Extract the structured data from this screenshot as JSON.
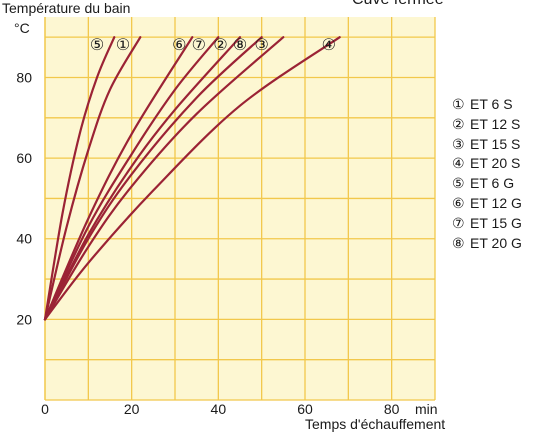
{
  "chart_data": {
    "type": "line",
    "ylabel": "Température du bain",
    "yunit": "°C",
    "xlabel": "Temps d'échauffement",
    "xunit": "min",
    "top_text": "Cuve fermée",
    "xlim": [
      0,
      90
    ],
    "ylim": [
      0,
      95
    ],
    "xticks": [
      0,
      20,
      40,
      60,
      80
    ],
    "yticks": [
      20,
      40,
      60,
      80
    ],
    "grid": true,
    "background": "#fdf7d2",
    "grid_color": "#f2c84b",
    "line_color": "#9b2335",
    "legend_position": "right",
    "series": [
      {
        "marker": "①",
        "name": "ET 6 S",
        "x": [
          0,
          5,
          10,
          15,
          22
        ],
        "y": [
          20,
          43,
          62,
          77,
          90
        ]
      },
      {
        "marker": "②",
        "name": "ET 12 S",
        "x": [
          0,
          10,
          20,
          30,
          45
        ],
        "y": [
          20,
          41,
          58,
          72,
          90
        ]
      },
      {
        "marker": "③",
        "name": "ET 15 S",
        "x": [
          0,
          10,
          20,
          35,
          55
        ],
        "y": [
          20,
          38,
          53,
          71,
          90
        ]
      },
      {
        "marker": "④",
        "name": "ET 20 S",
        "x": [
          0,
          10,
          25,
          45,
          68
        ],
        "y": [
          20,
          34,
          52,
          73,
          90
        ]
      },
      {
        "marker": "⑤",
        "name": "ET 6 G",
        "x": [
          0,
          4,
          8,
          12,
          16
        ],
        "y": [
          20,
          46,
          66,
          80,
          90
        ]
      },
      {
        "marker": "⑥",
        "name": "ET 12 G",
        "x": [
          0,
          10,
          20,
          34
        ],
        "y": [
          20,
          45,
          66,
          90
        ]
      },
      {
        "marker": "⑦",
        "name": "ET 15 G",
        "x": [
          0,
          10,
          20,
          30,
          40
        ],
        "y": [
          20,
          43,
          61,
          77,
          90
        ]
      },
      {
        "marker": "⑧",
        "name": "ET 20 G",
        "x": [
          0,
          10,
          20,
          35,
          50
        ],
        "y": [
          20,
          40,
          56,
          75,
          90
        ]
      }
    ],
    "curve_label_order": [
      "⑤",
      "①",
      "⑥",
      "⑦",
      "②",
      "⑧",
      "③",
      "④"
    ],
    "curve_label_x": [
      12,
      18,
      31,
      35.5,
      40.5,
      45,
      50,
      65.5
    ]
  }
}
